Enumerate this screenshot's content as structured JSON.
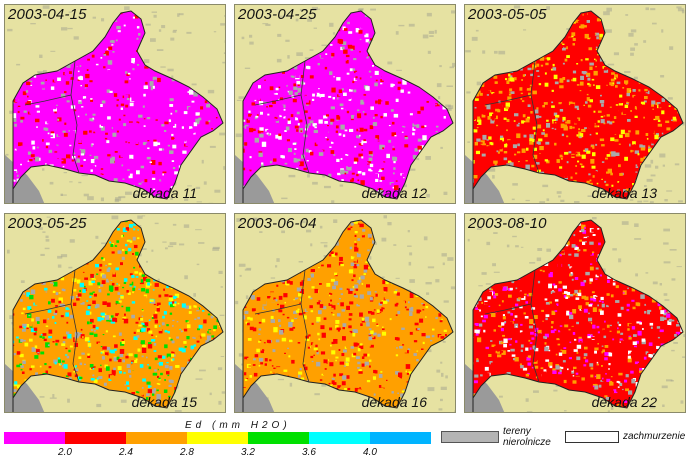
{
  "panels": [
    {
      "date": "2003-04-15",
      "dekada": "dekada 11",
      "palette": [
        "#ff00ff",
        "#ff00ff",
        "#ff00ff",
        "#ff00ff",
        "#ffffff",
        "#ff0000",
        "#aaaaaa"
      ]
    },
    {
      "date": "2003-04-25",
      "dekada": "dekada 12",
      "palette": [
        "#ff00ff",
        "#ff00ff",
        "#ff00ff",
        "#ff00ff",
        "#ffffff",
        "#ff0000",
        "#aaaaaa"
      ]
    },
    {
      "date": "2003-05-05",
      "dekada": "dekada 13",
      "palette": [
        "#ff0000",
        "#ff0000",
        "#ff0000",
        "#ffa000",
        "#ffa000",
        "#ffff00",
        "#aaaaaa"
      ]
    },
    {
      "date": "2003-05-25",
      "dekada": "dekada 15",
      "palette": [
        "#ffa000",
        "#ffa000",
        "#ffff00",
        "#ff0000",
        "#00e000",
        "#00ffff",
        "#aaaaaa"
      ]
    },
    {
      "date": "2003-06-04",
      "dekada": "dekada 16",
      "palette": [
        "#ffa000",
        "#ffa000",
        "#ffa000",
        "#ff0000",
        "#ff0000",
        "#ffff00",
        "#aaaaaa"
      ]
    },
    {
      "date": "2003-08-10",
      "dekada": "dekada 22",
      "palette": [
        "#ff0000",
        "#ff0000",
        "#ff0000",
        "#ff00ff",
        "#ffa000",
        "#ffffff",
        "#aaaaaa"
      ]
    }
  ],
  "legend": {
    "title": "Ed  (mm  H2O)",
    "colors": [
      "#ff00ff",
      "#ff0000",
      "#ffa000",
      "#ffff00",
      "#00e000",
      "#00ffff",
      "#00b4ff"
    ],
    "ticks": [
      "2.0",
      "2.4",
      "2.8",
      "3.2",
      "3.6",
      "4.0"
    ],
    "non_agri_label": "tereny\nnierolnicze",
    "cloud_label": "zachmurzenie",
    "non_agri_color": "#b4b4b4",
    "background_color": "#e6e2a2"
  }
}
